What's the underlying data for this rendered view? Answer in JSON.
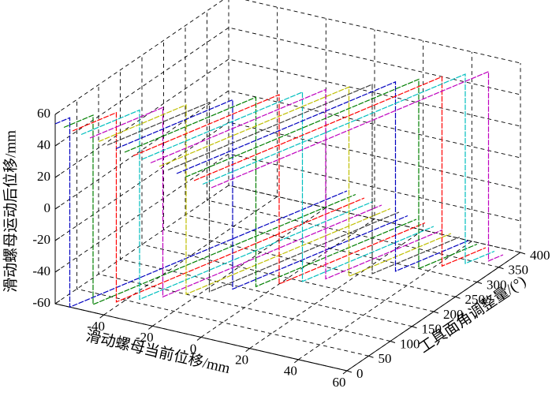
{
  "chart_data": {
    "type": "line3d",
    "xlabel": "滑动螺母当前位移/mm",
    "ylabel": "工具面角调整量/(°)",
    "zlabel": "滑动螺母运动后位移/mm",
    "xlim": [
      -60,
      60
    ],
    "xticks": [
      -40,
      -20,
      0,
      20,
      40,
      60
    ],
    "ylim": [
      0,
      400
    ],
    "yticks": [
      0,
      50,
      100,
      150,
      200,
      250,
      300,
      350,
      400
    ],
    "zlim": [
      -60,
      60
    ],
    "zticks": [
      -60,
      -40,
      -20,
      0,
      20,
      40,
      60
    ],
    "grid": true,
    "series": [
      {
        "color": "#0000bf",
        "angle": 0,
        "x": [
          -60,
          -54,
          -54,
          60
        ],
        "values": [
          54,
          60,
          -60,
          54
        ]
      },
      {
        "color": "#007f00",
        "angle": 20,
        "x": [
          -60,
          -48,
          -48,
          60
        ],
        "values": [
          48,
          60,
          -60,
          48
        ]
      },
      {
        "color": "#ff0000",
        "angle": 40,
        "x": [
          -60,
          -42,
          -42,
          60
        ],
        "values": [
          42,
          60,
          -60,
          42
        ]
      },
      {
        "color": "#00bfbf",
        "angle": 60,
        "x": [
          -60,
          -36,
          -36,
          60
        ],
        "values": [
          36,
          60,
          -60,
          36
        ]
      },
      {
        "color": "#bf00bf",
        "angle": 80,
        "x": [
          -60,
          -30,
          -30,
          60
        ],
        "values": [
          30,
          60,
          -60,
          30
        ]
      },
      {
        "color": "#bfbf00",
        "angle": 100,
        "x": [
          -60,
          -24,
          -24,
          60
        ],
        "values": [
          24,
          60,
          -60,
          24
        ]
      },
      {
        "color": "#3f3f3f",
        "angle": 120,
        "x": [
          -60,
          -18,
          -18,
          60
        ],
        "values": [
          18,
          60,
          -60,
          18
        ]
      },
      {
        "color": "#0000bf",
        "angle": 140,
        "x": [
          -60,
          -12,
          -12,
          60
        ],
        "values": [
          12,
          60,
          -60,
          12
        ]
      },
      {
        "color": "#007f00",
        "angle": 160,
        "x": [
          -60,
          -6,
          -6,
          60
        ],
        "values": [
          6,
          60,
          -60,
          6
        ]
      },
      {
        "color": "#ff0000",
        "angle": 180,
        "x": [
          -60,
          0,
          0,
          60
        ],
        "values": [
          0,
          60,
          -60,
          0
        ]
      },
      {
        "color": "#00bfbf",
        "angle": 200,
        "x": [
          -60,
          6,
          6,
          60
        ],
        "values": [
          -6,
          60,
          -60,
          -6
        ]
      },
      {
        "color": "#bf00bf",
        "angle": 220,
        "x": [
          -60,
          12,
          12,
          60
        ],
        "values": [
          -12,
          60,
          -60,
          -12
        ]
      },
      {
        "color": "#bfbf00",
        "angle": 240,
        "x": [
          -60,
          18,
          18,
          60
        ],
        "values": [
          -18,
          60,
          -60,
          -18
        ]
      },
      {
        "color": "#3f3f3f",
        "angle": 260,
        "x": [
          -60,
          24,
          24,
          60
        ],
        "values": [
          -24,
          60,
          -60,
          -24
        ]
      },
      {
        "color": "#0000bf",
        "angle": 280,
        "x": [
          -60,
          30,
          30,
          60
        ],
        "values": [
          -30,
          60,
          -60,
          -30
        ]
      },
      {
        "color": "#007f00",
        "angle": 300,
        "x": [
          -60,
          36,
          36,
          60
        ],
        "values": [
          -36,
          60,
          -60,
          -36
        ]
      },
      {
        "color": "#ff0000",
        "angle": 320,
        "x": [
          -60,
          42,
          42,
          60
        ],
        "values": [
          -42,
          60,
          -60,
          -42
        ]
      },
      {
        "color": "#00bfbf",
        "angle": 340,
        "x": [
          -60,
          48,
          48,
          60
        ],
        "values": [
          -48,
          60,
          -60,
          -48
        ]
      },
      {
        "color": "#bf00bf",
        "angle": 360,
        "x": [
          -60,
          54,
          54,
          60
        ],
        "values": [
          -54,
          60,
          -60,
          -54
        ]
      }
    ]
  }
}
